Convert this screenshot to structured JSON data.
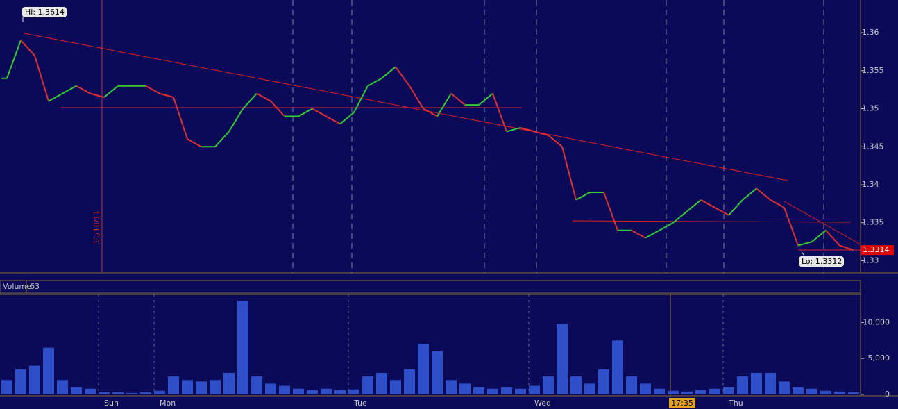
{
  "chart_data": [
    {
      "type": "line",
      "values": [
        1.354,
        1.359,
        1.357,
        1.351,
        1.352,
        1.353,
        1.352,
        1.3515,
        1.353,
        1.353,
        1.353,
        1.352,
        1.3515,
        1.346,
        1.345,
        1.345,
        1.347,
        1.35,
        1.352,
        1.351,
        1.349,
        1.349,
        1.35,
        1.349,
        1.348,
        1.3495,
        1.353,
        1.354,
        1.3555,
        1.353,
        1.35,
        1.349,
        1.352,
        1.3505,
        1.3505,
        1.352,
        1.347,
        1.3475,
        1.347,
        1.3465,
        1.345,
        1.338,
        1.339,
        1.339,
        1.334,
        1.334,
        1.333,
        1.334,
        1.335,
        1.3365,
        1.338,
        1.337,
        1.336,
        1.338,
        1.3395,
        1.338,
        1.337,
        1.332,
        1.3325,
        1.334,
        1.332,
        1.3314
      ],
      "up_color": "#33cc33",
      "down_color": "#e03030",
      "ylim": [
        1.3284,
        1.3643
      ],
      "yticks": [
        1.33,
        1.335,
        1.34,
        1.345,
        1.35,
        1.355,
        1.36
      ],
      "hi": {
        "value": 1.3614,
        "label": "Hi: 1.3614"
      },
      "lo": {
        "value": 1.3312,
        "label": "Lo: 1.3312"
      },
      "last": 1.3314,
      "date_label": "11/18/11"
    },
    {
      "type": "bar",
      "title": "Volume",
      "current": 63,
      "time_label": "17:35",
      "color": "#2f4fc8",
      "categories": [
        null,
        null,
        null,
        null,
        null,
        null,
        null,
        "Sun",
        null,
        null,
        null,
        "Mon",
        null,
        null,
        null,
        null,
        null,
        null,
        null,
        null,
        null,
        null,
        null,
        null,
        null,
        "Tue",
        null,
        null,
        null,
        null,
        null,
        null,
        null,
        null,
        null,
        null,
        null,
        null,
        "Wed",
        null,
        null,
        null,
        null,
        null,
        null,
        null,
        null,
        null,
        null,
        null,
        null,
        null,
        "Thu",
        null,
        null,
        null,
        null,
        null,
        null,
        null,
        null,
        null
      ],
      "values": [
        2000,
        3500,
        4000,
        6500,
        2000,
        1000,
        800,
        300,
        300,
        200,
        300,
        500,
        2500,
        2000,
        1800,
        2000,
        3000,
        13000,
        2500,
        1500,
        1200,
        800,
        600,
        800,
        600,
        700,
        2500,
        3000,
        2000,
        3500,
        7000,
        6000,
        2000,
        1500,
        1000,
        800,
        1000,
        800,
        1200,
        2500,
        9800,
        2500,
        1500,
        3500,
        7500,
        2500,
        1500,
        800,
        500,
        400,
        600,
        800,
        1000,
        2500,
        3000,
        3000,
        1800,
        1000,
        800,
        500,
        400,
        300
      ],
      "ylim": [
        0,
        13900
      ],
      "yticks": [
        0,
        {
          "value": 5000,
          "label": "5,000"
        },
        {
          "value": 10000,
          "label": "10,000"
        }
      ]
    }
  ]
}
